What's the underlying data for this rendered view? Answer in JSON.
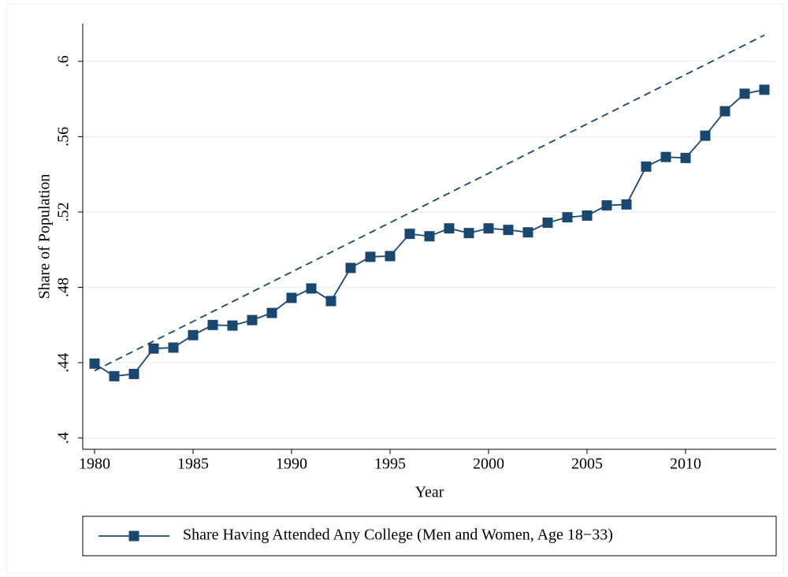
{
  "chart_data": {
    "type": "line",
    "x_label": "Year",
    "y_label": "Share of Population",
    "x": [
      1980,
      1981,
      1982,
      1983,
      1984,
      1985,
      1986,
      1987,
      1988,
      1989,
      1990,
      1991,
      1992,
      1993,
      1994,
      1995,
      1996,
      1997,
      1998,
      1999,
      2000,
      2001,
      2002,
      2003,
      2004,
      2005,
      2006,
      2007,
      2008,
      2009,
      2010,
      2011,
      2012,
      2013,
      2014
    ],
    "series": [
      {
        "name": "Share Having Attended Any College (Men and Women, Age 18−33)",
        "color": "#1a476f",
        "values": [
          0.4395,
          0.4328,
          0.434,
          0.4475,
          0.448,
          0.4546,
          0.46,
          0.4597,
          0.4626,
          0.4664,
          0.4744,
          0.4794,
          0.4727,
          0.4903,
          0.4962,
          0.4966,
          0.5084,
          0.5071,
          0.5113,
          0.5088,
          0.5113,
          0.5105,
          0.5092,
          0.5143,
          0.5172,
          0.5181,
          0.5235,
          0.524,
          0.5441,
          0.5492,
          0.5487,
          0.5605,
          0.5735,
          0.5828,
          0.5849
        ]
      }
    ],
    "trend": {
      "x": [
        1980,
        2014
      ],
      "values": [
        0.4357,
        0.6139
      ],
      "color": "#1a476f",
      "dashed": true
    },
    "xlim": [
      1979.4,
      2014.6
    ],
    "ylim": [
      0.394,
      0.62
    ],
    "xticks": [
      1980,
      1985,
      1990,
      1995,
      2000,
      2005,
      2010
    ],
    "yticks": [
      {
        "value": 0.4,
        "label": ".4"
      },
      {
        "value": 0.44,
        "label": ".44"
      },
      {
        "value": 0.48,
        "label": ".48"
      },
      {
        "value": 0.52,
        "label": ".52"
      },
      {
        "value": 0.56,
        "label": ".56"
      },
      {
        "value": 0.6,
        "label": ".6"
      }
    ],
    "grid": true,
    "legend": "bottom"
  }
}
